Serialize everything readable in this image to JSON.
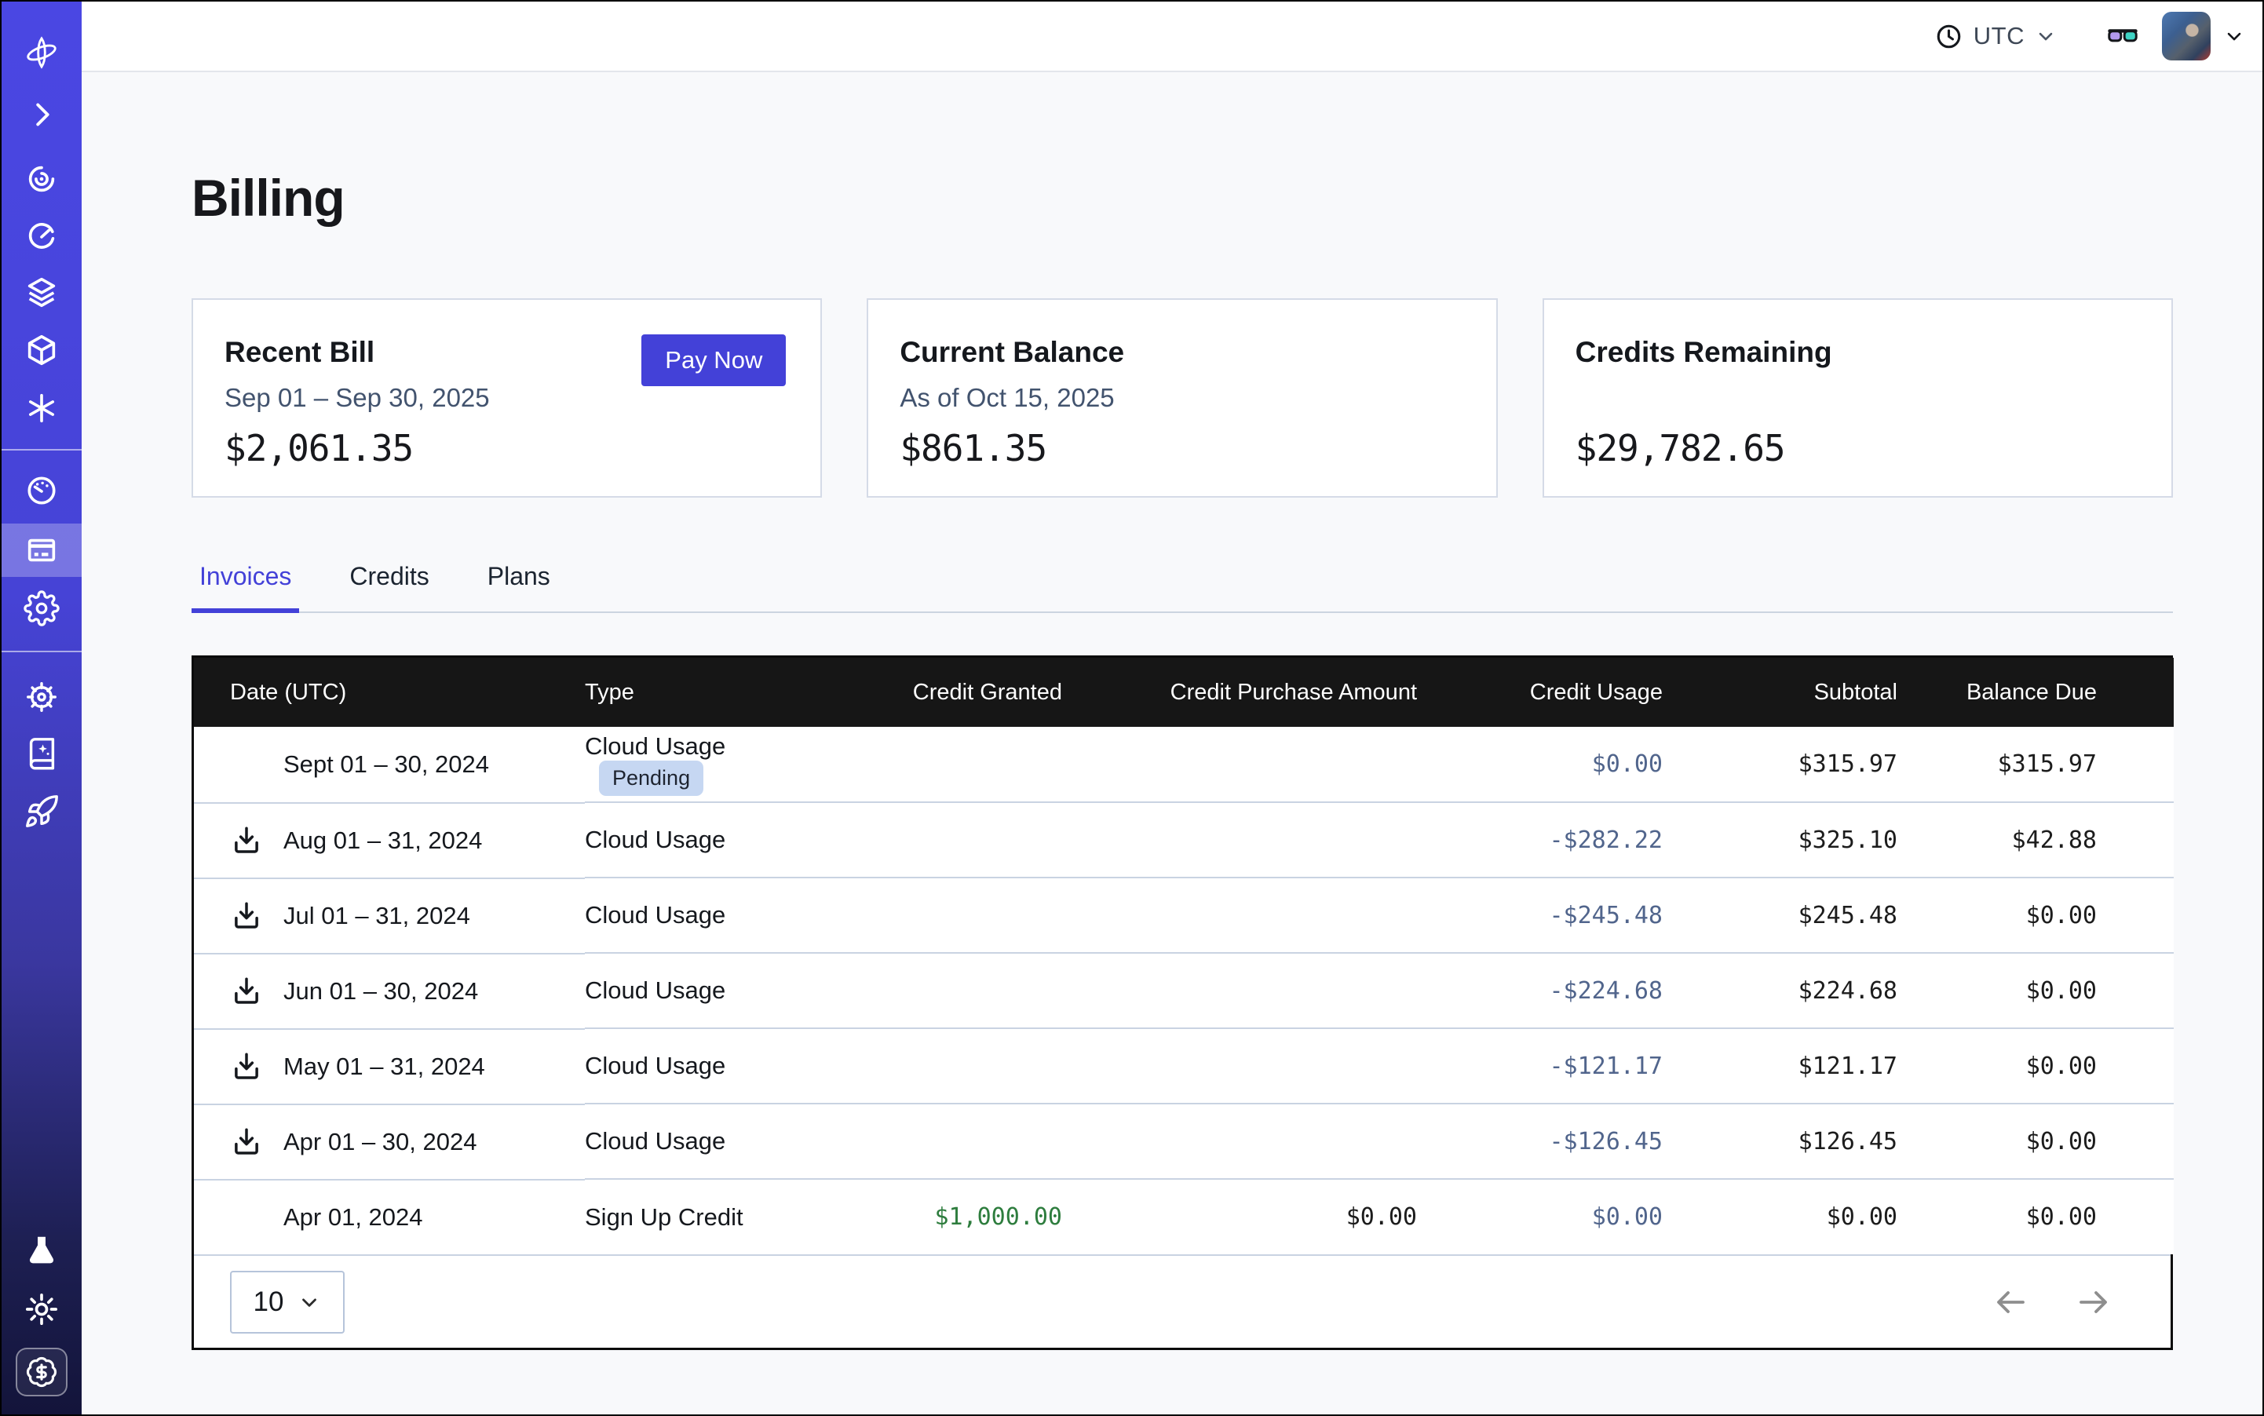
{
  "colors": {
    "accent": "#4341d8",
    "page-bg": "#f8f9fb",
    "table-header-bg": "#161616",
    "badge-bg": "#c6d7f2",
    "usage-color": "#51658c",
    "credit-green": "#2e7d3e"
  },
  "topbar": {
    "timezone": "UTC",
    "icons": [
      "clock-icon",
      "chevron-down-icon",
      "glasses-icon",
      "avatar",
      "chevron-down-icon"
    ]
  },
  "sidebar": {
    "top_icons": [
      "logo-icon",
      "expand-sidebar-icon",
      "observe-icon",
      "timer-icon",
      "layers-icon",
      "cube-icon",
      "asterisk-icon"
    ],
    "middle_icons": [
      "gauge-icon",
      "billing-icon",
      "settings-icon"
    ],
    "lower_icons": [
      "wheel-icon",
      "docs-book-icon",
      "rocket-icon"
    ],
    "bottom_icons": [
      "flask-icon",
      "sun-icon",
      "credits-dollar-icon"
    ],
    "active_item": "billing"
  },
  "page": {
    "title": "Billing"
  },
  "cards": [
    {
      "title": "Recent Bill",
      "subtitle": "Sep 01 – Sep 30, 2025",
      "amount": "$2,061.35",
      "action": "Pay Now"
    },
    {
      "title": "Current Balance",
      "subtitle": "As of Oct 15, 2025",
      "amount": "$861.35"
    },
    {
      "title": "Credits Remaining",
      "subtitle": "",
      "amount": "$29,782.65"
    }
  ],
  "tabs": [
    {
      "label": "Invoices",
      "active": true
    },
    {
      "label": "Credits",
      "active": false
    },
    {
      "label": "Plans",
      "active": false
    }
  ],
  "table": {
    "columns": [
      "Date (UTC)",
      "Type",
      "Credit Granted",
      "Credit Purchase Amount",
      "Credit Usage",
      "Subtotal",
      "Balance Due"
    ],
    "rows": [
      {
        "download": false,
        "date": "Sept 01 – 30, 2024",
        "type": "Cloud Usage",
        "badge": "Pending",
        "credit_granted": "",
        "credit_purchase": "",
        "credit_usage": "$0.00",
        "subtotal": "$315.97",
        "balance_due": "$315.97"
      },
      {
        "download": true,
        "date": "Aug 01 – 31, 2024",
        "type": "Cloud Usage",
        "badge": "",
        "credit_granted": "",
        "credit_purchase": "",
        "credit_usage": "-$282.22",
        "subtotal": "$325.10",
        "balance_due": "$42.88"
      },
      {
        "download": true,
        "date": "Jul 01 – 31, 2024",
        "type": "Cloud Usage",
        "badge": "",
        "credit_granted": "",
        "credit_purchase": "",
        "credit_usage": "-$245.48",
        "subtotal": "$245.48",
        "balance_due": "$0.00"
      },
      {
        "download": true,
        "date": "Jun 01 – 30, 2024",
        "type": "Cloud Usage",
        "badge": "",
        "credit_granted": "",
        "credit_purchase": "",
        "credit_usage": "-$224.68",
        "subtotal": "$224.68",
        "balance_due": "$0.00"
      },
      {
        "download": true,
        "date": "May 01 – 31, 2024",
        "type": "Cloud Usage",
        "badge": "",
        "credit_granted": "",
        "credit_purchase": "",
        "credit_usage": "-$121.17",
        "subtotal": "$121.17",
        "balance_due": "$0.00"
      },
      {
        "download": true,
        "date": "Apr 01 – 30, 2024",
        "type": "Cloud Usage",
        "badge": "",
        "credit_granted": "",
        "credit_purchase": "",
        "credit_usage": "-$126.45",
        "subtotal": "$126.45",
        "balance_due": "$0.00"
      },
      {
        "download": false,
        "date": "Apr 01, 2024",
        "type": "Sign Up Credit",
        "badge": "",
        "credit_granted": "$1,000.00",
        "credit_purchase": "$0.00",
        "credit_usage": "$0.00",
        "subtotal": "$0.00",
        "balance_due": "$0.00"
      }
    ]
  },
  "pagination": {
    "page_size": "10",
    "controls": [
      "previous-page",
      "next-page"
    ]
  }
}
